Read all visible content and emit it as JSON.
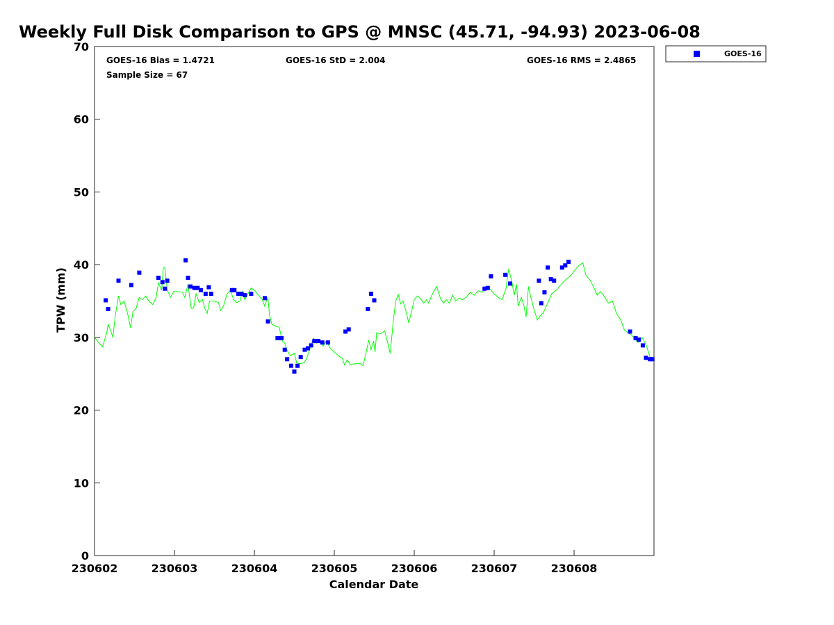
{
  "chart_data": {
    "type": "scatter",
    "title": "Weekly Full Disk Comparison to GPS @ MNSC (45.71, -94.93) 2023-06-08",
    "xlabel": "Calendar Date",
    "ylabel": "TPW (mm)",
    "xlim": [
      0,
      7
    ],
    "ylim": [
      0,
      70
    ],
    "x_ticks": [
      {
        "value": 0,
        "label": "230602"
      },
      {
        "value": 1,
        "label": "230603"
      },
      {
        "value": 2,
        "label": "230604"
      },
      {
        "value": 3,
        "label": "230605"
      },
      {
        "value": 4,
        "label": "230606"
      },
      {
        "value": 5,
        "label": "230607"
      },
      {
        "value": 6,
        "label": "230608"
      }
    ],
    "y_ticks": [
      {
        "value": 0,
        "label": "0"
      },
      {
        "value": 10,
        "label": "10"
      },
      {
        "value": 20,
        "label": "20"
      },
      {
        "value": 30,
        "label": "30"
      },
      {
        "value": 40,
        "label": "40"
      },
      {
        "value": 50,
        "label": "50"
      },
      {
        "value": 60,
        "label": "60"
      },
      {
        "value": 70,
        "label": "70"
      }
    ],
    "stats": {
      "bias": "GOES-16 Bias = 1.4721",
      "std": "GOES-16 StD = 2.004",
      "rms": "GOES-16 RMS = 2.4865",
      "sample": "Sample Size = 67"
    },
    "legend": {
      "label": "GOES-16",
      "position": "top-right"
    },
    "series": [
      {
        "name": "GPS",
        "kind": "line",
        "color": "#00ff00",
        "points": [
          [
            0,
            30
          ],
          [
            0.05,
            29.3
          ],
          [
            0.1,
            28.7
          ],
          [
            0.15,
            30.5
          ],
          [
            0.17,
            31.8
          ],
          [
            0.2,
            31
          ],
          [
            0.23,
            30
          ],
          [
            0.26,
            33
          ],
          [
            0.3,
            35.7
          ],
          [
            0.33,
            34.5
          ],
          [
            0.37,
            35
          ],
          [
            0.42,
            33
          ],
          [
            0.45,
            31.3
          ],
          [
            0.48,
            33.5
          ],
          [
            0.52,
            34
          ],
          [
            0.56,
            35.5
          ],
          [
            0.6,
            35.2
          ],
          [
            0.64,
            35.7
          ],
          [
            0.68,
            35
          ],
          [
            0.73,
            34.5
          ],
          [
            0.77,
            35.5
          ],
          [
            0.8,
            37.5
          ],
          [
            0.84,
            36.5
          ],
          [
            0.86,
            39.5
          ],
          [
            0.88,
            39.6
          ],
          [
            0.91,
            36.5
          ],
          [
            0.95,
            35.5
          ],
          [
            0.99,
            36.3
          ],
          [
            1.04,
            36.3
          ],
          [
            1.1,
            36.2
          ],
          [
            1.13,
            35.5
          ],
          [
            1.17,
            37.3
          ],
          [
            1.21,
            34
          ],
          [
            1.24,
            34
          ],
          [
            1.27,
            36
          ],
          [
            1.31,
            34.8
          ],
          [
            1.35,
            35.2
          ],
          [
            1.38,
            34
          ],
          [
            1.41,
            33.3
          ],
          [
            1.44,
            35
          ],
          [
            1.5,
            35
          ],
          [
            1.55,
            34.8
          ],
          [
            1.58,
            33.7
          ],
          [
            1.62,
            34.5
          ],
          [
            1.66,
            36
          ],
          [
            1.7,
            36.5
          ],
          [
            1.74,
            35.2
          ],
          [
            1.78,
            34.8
          ],
          [
            1.82,
            35
          ],
          [
            1.85,
            36.3
          ],
          [
            1.88,
            35.2
          ],
          [
            1.92,
            36
          ],
          [
            1.96,
            36.8
          ],
          [
            2.0,
            36.5
          ],
          [
            2.05,
            35.8
          ],
          [
            2.1,
            35.2
          ],
          [
            2.13,
            34.3
          ],
          [
            2.15,
            35
          ],
          [
            2.17,
            35.4
          ],
          [
            2.19,
            33
          ],
          [
            2.22,
            31.8
          ],
          [
            2.27,
            31.5
          ],
          [
            2.31,
            31.4
          ],
          [
            2.35,
            29.5
          ],
          [
            2.38,
            29.2
          ],
          [
            2.41,
            28.2
          ],
          [
            2.45,
            27.5
          ],
          [
            2.5,
            27.8
          ],
          [
            2.53,
            26.5
          ],
          [
            2.57,
            26.4
          ],
          [
            2.62,
            26.5
          ],
          [
            2.65,
            27
          ],
          [
            2.7,
            28.6
          ],
          [
            2.74,
            29.9
          ],
          [
            2.78,
            29.2
          ],
          [
            2.82,
            29.5
          ],
          [
            2.86,
            28.8
          ],
          [
            2.9,
            29.5
          ],
          [
            2.95,
            28.5
          ],
          [
            3.0,
            28
          ],
          [
            3.05,
            27.5
          ],
          [
            3.1,
            27.1
          ],
          [
            3.13,
            26.2
          ],
          [
            3.16,
            26.9
          ],
          [
            3.2,
            26.3
          ],
          [
            3.28,
            26.4
          ],
          [
            3.33,
            26.4
          ],
          [
            3.36,
            26.1
          ],
          [
            3.4,
            28
          ],
          [
            3.43,
            29.6
          ],
          [
            3.46,
            28.3
          ],
          [
            3.49,
            29.5
          ],
          [
            3.51,
            28
          ],
          [
            3.53,
            30.6
          ],
          [
            3.58,
            30.5
          ],
          [
            3.63,
            30.9
          ],
          [
            3.67,
            29.2
          ],
          [
            3.7,
            27.8
          ],
          [
            3.74,
            32.5
          ],
          [
            3.77,
            35
          ],
          [
            3.8,
            35.9
          ],
          [
            3.83,
            34.6
          ],
          [
            3.86,
            35
          ],
          [
            3.9,
            33.5
          ],
          [
            3.93,
            32
          ],
          [
            3.97,
            33.7
          ],
          [
            4.0,
            35.2
          ],
          [
            4.04,
            35.7
          ],
          [
            4.08,
            35.3
          ],
          [
            4.12,
            34.7
          ],
          [
            4.15,
            35.2
          ],
          [
            4.18,
            34.7
          ],
          [
            4.22,
            35.8
          ],
          [
            4.28,
            37
          ],
          [
            4.33,
            35.3
          ],
          [
            4.37,
            34.7
          ],
          [
            4.4,
            35.2
          ],
          [
            4.44,
            34.7
          ],
          [
            4.48,
            35.8
          ],
          [
            4.52,
            35
          ],
          [
            4.56,
            35.4
          ],
          [
            4.6,
            35.2
          ],
          [
            4.65,
            35.5
          ],
          [
            4.7,
            36.2
          ],
          [
            4.75,
            35.8
          ],
          [
            4.8,
            36.4
          ],
          [
            4.85,
            36.2
          ],
          [
            4.9,
            37
          ],
          [
            4.95,
            36.6
          ],
          [
            5.0,
            36
          ],
          [
            5.05,
            35.5
          ],
          [
            5.1,
            35.2
          ],
          [
            5.15,
            36.8
          ],
          [
            5.18,
            39.4
          ],
          [
            5.22,
            37.8
          ],
          [
            5.25,
            35.8
          ],
          [
            5.28,
            37.3
          ],
          [
            5.3,
            34.3
          ],
          [
            5.34,
            35.5
          ],
          [
            5.37,
            34.5
          ],
          [
            5.4,
            32.8
          ],
          [
            5.43,
            37
          ],
          [
            5.46,
            35.5
          ],
          [
            5.5,
            33.8
          ],
          [
            5.54,
            32.4
          ],
          [
            5.58,
            33
          ],
          [
            5.62,
            33.5
          ],
          [
            5.67,
            34.7
          ],
          [
            5.72,
            36
          ],
          [
            5.78,
            36.5
          ],
          [
            5.84,
            37.3
          ],
          [
            5.9,
            38
          ],
          [
            5.96,
            38.5
          ],
          [
            6.02,
            39.4
          ],
          [
            6.07,
            40
          ],
          [
            6.11,
            40.2
          ],
          [
            6.15,
            38.5
          ],
          [
            6.2,
            37.9
          ],
          [
            6.25,
            36.8
          ],
          [
            6.29,
            35.8
          ],
          [
            6.33,
            36.3
          ],
          [
            6.38,
            35.6
          ],
          [
            6.43,
            34.7
          ],
          [
            6.48,
            35
          ],
          [
            6.53,
            33.3
          ],
          [
            6.58,
            32.5
          ],
          [
            6.63,
            31
          ],
          [
            6.67,
            30.7
          ],
          [
            6.72,
            30.3
          ],
          [
            6.76,
            29.8
          ],
          [
            6.8,
            29.3
          ],
          [
            6.85,
            30
          ],
          [
            6.9,
            29
          ],
          [
            6.95,
            27.3
          ],
          [
            7.0,
            26.8
          ]
        ]
      },
      {
        "name": "GOES-16",
        "kind": "markers",
        "color": "#0000ff",
        "points": [
          [
            0.14,
            35.1
          ],
          [
            0.17,
            33.9
          ],
          [
            0.3,
            37.8
          ],
          [
            0.46,
            37.2
          ],
          [
            0.56,
            38.9
          ],
          [
            0.8,
            38.2
          ],
          [
            0.85,
            37.6
          ],
          [
            0.88,
            36.7
          ],
          [
            0.91,
            37.8
          ],
          [
            1.14,
            40.6
          ],
          [
            1.17,
            38.2
          ],
          [
            1.2,
            37
          ],
          [
            1.25,
            36.8
          ],
          [
            1.29,
            36.8
          ],
          [
            1.33,
            36.5
          ],
          [
            1.39,
            36
          ],
          [
            1.43,
            36.9
          ],
          [
            1.46,
            36
          ],
          [
            1.72,
            36.5
          ],
          [
            1.75,
            36.5
          ],
          [
            1.8,
            36
          ],
          [
            1.84,
            36
          ],
          [
            1.88,
            35.8
          ],
          [
            1.96,
            36
          ],
          [
            2.13,
            35.4
          ],
          [
            2.17,
            32.2
          ],
          [
            2.29,
            29.9
          ],
          [
            2.34,
            29.9
          ],
          [
            2.38,
            28.3
          ],
          [
            2.41,
            27
          ],
          [
            2.46,
            26.1
          ],
          [
            2.5,
            25.3
          ],
          [
            2.54,
            26.1
          ],
          [
            2.58,
            27.3
          ],
          [
            2.63,
            28.3
          ],
          [
            2.67,
            28.5
          ],
          [
            2.71,
            28.9
          ],
          [
            2.75,
            29.5
          ],
          [
            2.8,
            29.5
          ],
          [
            2.85,
            29.3
          ],
          [
            2.92,
            29.3
          ],
          [
            3.14,
            30.8
          ],
          [
            3.18,
            31.1
          ],
          [
            3.42,
            33.9
          ],
          [
            3.46,
            36
          ],
          [
            3.5,
            35.1
          ],
          [
            4.88,
            36.7
          ],
          [
            4.92,
            36.8
          ],
          [
            4.96,
            38.4
          ],
          [
            5.14,
            38.6
          ],
          [
            5.2,
            37.4
          ],
          [
            5.56,
            37.8
          ],
          [
            5.59,
            34.7
          ],
          [
            5.63,
            36.2
          ],
          [
            5.67,
            39.6
          ],
          [
            5.71,
            38
          ],
          [
            5.75,
            37.8
          ],
          [
            5.85,
            39.6
          ],
          [
            5.89,
            39.9
          ],
          [
            5.93,
            40.4
          ],
          [
            6.7,
            30.8
          ],
          [
            6.77,
            29.9
          ],
          [
            6.81,
            29.7
          ],
          [
            6.86,
            28.9
          ],
          [
            6.9,
            27.2
          ],
          [
            6.95,
            27
          ],
          [
            6.98,
            27
          ]
        ]
      }
    ]
  }
}
